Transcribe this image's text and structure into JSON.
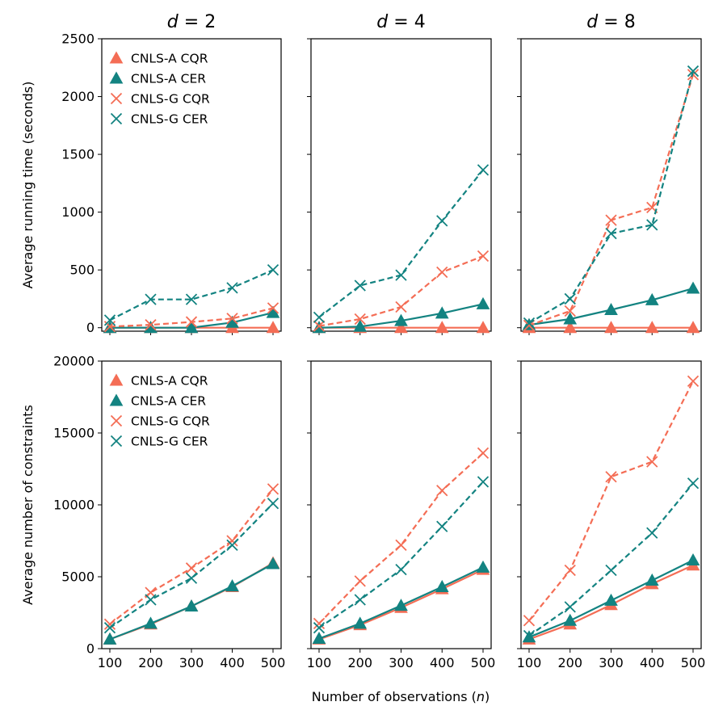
{
  "chart_data": {
    "type": "line",
    "xlabel": "Number of observations (n)",
    "x": [
      100,
      200,
      300,
      400,
      500
    ],
    "x_ticks": [
      100,
      200,
      300,
      400,
      500
    ],
    "colors": {
      "CQR": "#f46d55",
      "CER": "#138381"
    },
    "columns": [
      {
        "title_var": "d",
        "title_eq": " = ",
        "title_val": "2"
      },
      {
        "title_var": "d",
        "title_eq": " = ",
        "title_val": "4"
      },
      {
        "title_var": "d",
        "title_eq": " = ",
        "title_val": "8"
      }
    ],
    "rows": [
      {
        "ylabel": "Average running time (seconds)",
        "ylim": [
          -30,
          2500
        ],
        "y_ticks": [
          0,
          500,
          1000,
          1500,
          2000,
          2500
        ],
        "panels": [
          {
            "legend": "top-left",
            "series": [
              {
                "name": "CNLS-A CQR",
                "style": "solid",
                "marker": "triangle",
                "color": "CQR",
                "values": [
                  0,
                  0,
                  0,
                  0,
                  0
                ]
              },
              {
                "name": "CNLS-A CER",
                "style": "solid",
                "marker": "triangle",
                "color": "CER",
                "values": [
                  0,
                  0,
                  0,
                  45,
                  130
                ]
              },
              {
                "name": "CNLS-G CQR",
                "style": "dashed",
                "marker": "x",
                "color": "CQR",
                "values": [
                  10,
                  25,
                  50,
                  80,
                  170
                ]
              },
              {
                "name": "CNLS-G CER",
                "style": "dashed",
                "marker": "x",
                "color": "CER",
                "values": [
                  65,
                  245,
                  245,
                  345,
                  500
                ]
              }
            ]
          },
          {
            "legend": "none",
            "series": [
              {
                "name": "CNLS-A CQR",
                "style": "solid",
                "marker": "triangle",
                "color": "CQR",
                "values": [
                  0,
                  0,
                  0,
                  0,
                  0
                ]
              },
              {
                "name": "CNLS-A CER",
                "style": "solid",
                "marker": "triangle",
                "color": "CER",
                "values": [
                  0,
                  10,
                  60,
                  125,
                  205
                ]
              },
              {
                "name": "CNLS-G CQR",
                "style": "dashed",
                "marker": "x",
                "color": "CQR",
                "values": [
                  15,
                  75,
                  180,
                  480,
                  620
                ]
              },
              {
                "name": "CNLS-G CER",
                "style": "dashed",
                "marker": "x",
                "color": "CER",
                "values": [
                  90,
                  365,
                  455,
                  925,
                  1365
                ]
              }
            ]
          },
          {
            "legend": "none",
            "series": [
              {
                "name": "CNLS-A CQR",
                "style": "solid",
                "marker": "triangle",
                "color": "CQR",
                "values": [
                  0,
                  0,
                  0,
                  0,
                  0
                ]
              },
              {
                "name": "CNLS-A CER",
                "style": "solid",
                "marker": "triangle",
                "color": "CER",
                "values": [
                  25,
                  75,
                  155,
                  240,
                  340
                ]
              },
              {
                "name": "CNLS-G CQR",
                "style": "dashed",
                "marker": "x",
                "color": "CQR",
                "values": [
                  20,
                  145,
                  930,
                  1040,
                  2190
                ]
              },
              {
                "name": "CNLS-G CER",
                "style": "dashed",
                "marker": "x",
                "color": "CER",
                "values": [
                  40,
                  250,
                  815,
                  890,
                  2220
                ]
              }
            ]
          }
        ]
      },
      {
        "ylabel": "Average number of constraints",
        "ylim": [
          0,
          20000
        ],
        "y_ticks": [
          0,
          5000,
          10000,
          15000,
          20000
        ],
        "panels": [
          {
            "legend": "top-left",
            "series": [
              {
                "name": "CNLS-A CQR",
                "style": "solid",
                "marker": "triangle",
                "color": "CQR",
                "values": [
                  650,
                  1700,
                  2950,
                  4300,
                  5950
                ]
              },
              {
                "name": "CNLS-A CER",
                "style": "solid",
                "marker": "triangle",
                "color": "CER",
                "values": [
                  650,
                  1750,
                  2950,
                  4350,
                  5900
                ]
              },
              {
                "name": "CNLS-G CQR",
                "style": "dashed",
                "marker": "x",
                "color": "CQR",
                "values": [
                  1700,
                  3900,
                  5600,
                  7500,
                  11100
                ]
              },
              {
                "name": "CNLS-G CER",
                "style": "dashed",
                "marker": "x",
                "color": "CER",
                "values": [
                  1450,
                  3400,
                  4900,
                  7200,
                  10100
                ]
              }
            ]
          },
          {
            "legend": "none",
            "series": [
              {
                "name": "CNLS-A CQR",
                "style": "solid",
                "marker": "triangle",
                "color": "CQR",
                "values": [
                  650,
                  1650,
                  2850,
                  4150,
                  5500
                ]
              },
              {
                "name": "CNLS-A CER",
                "style": "solid",
                "marker": "triangle",
                "color": "CER",
                "values": [
                  700,
                  1750,
                  3000,
                  4300,
                  5650
                ]
              },
              {
                "name": "CNLS-G CQR",
                "style": "dashed",
                "marker": "x",
                "color": "CQR",
                "values": [
                  1750,
                  4700,
                  7200,
                  11000,
                  13600
                ]
              },
              {
                "name": "CNLS-G CER",
                "style": "dashed",
                "marker": "x",
                "color": "CER",
                "values": [
                  1450,
                  3400,
                  5500,
                  8500,
                  11600
                ]
              }
            ]
          },
          {
            "legend": "none",
            "series": [
              {
                "name": "CNLS-A CQR",
                "style": "solid",
                "marker": "triangle",
                "color": "CQR",
                "values": [
                  650,
                  1700,
                  3050,
                  4500,
                  5800
                ]
              },
              {
                "name": "CNLS-A CER",
                "style": "solid",
                "marker": "triangle",
                "color": "CER",
                "values": [
                  800,
                  1950,
                  3350,
                  4750,
                  6150
                ]
              },
              {
                "name": "CNLS-G CQR",
                "style": "dashed",
                "marker": "x",
                "color": "CQR",
                "values": [
                  1950,
                  5450,
                  11950,
                  13000,
                  18600
                ]
              },
              {
                "name": "CNLS-G CER",
                "style": "dashed",
                "marker": "x",
                "color": "CER",
                "values": [
                  900,
                  2900,
                  5450,
                  8050,
                  11500
                ]
              }
            ]
          }
        ]
      }
    ]
  }
}
